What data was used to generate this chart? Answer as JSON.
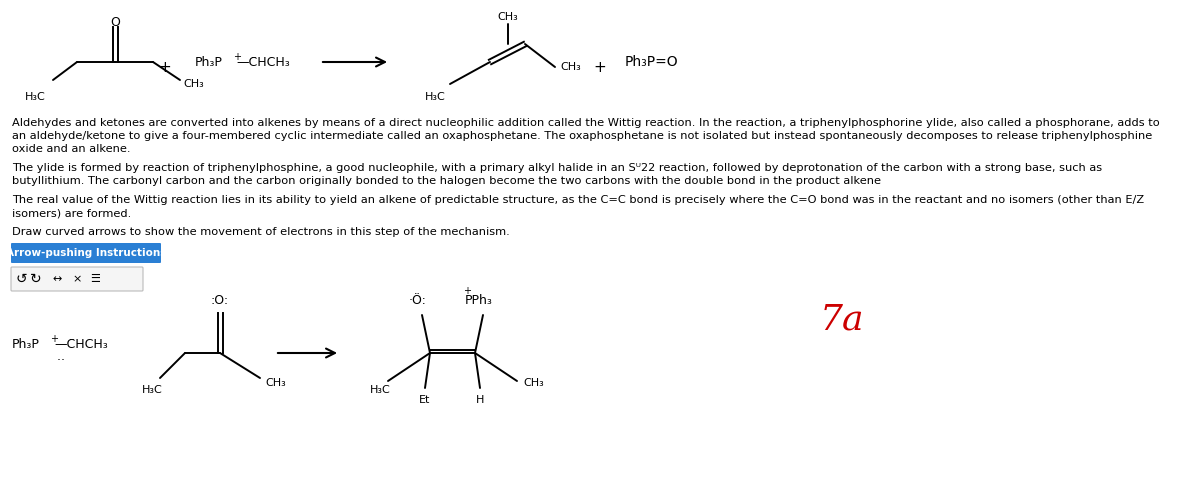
{
  "bg_color": "#ffffff",
  "paragraph1": "Aldehydes and ketones are converted into alkenes by means of a direct nucleophilic addition called the Wittig reaction. In the reaction, a triphenylphosphorine ylide, also called a phosphorane, adds to an aldehyde/ketone to give a four-membered cyclic intermediate called an oxaphosphetane. The oxaphosphetane is not isolated but instead spontaneously decomposes to release triphenylphosphine oxide and an alkene.",
  "paragraph2": "The ylide is formed by reaction of triphenylphosphine, a good nucleophile, with a primary alkyl halide in an Sᵁ22 reaction, followed by deprotonation of the carbon with a strong base, such as butyllithium. The carbonyl carbon and the carbon originally bonded to the halogen become the two carbons with the double bond in the product alkene",
  "paragraph3": "The real value of the Wittig reaction lies in its ability to yield an alkene of predictable structure, as the C=C bond is precisely where the C=O bond was in the reactant and no isomers (other than E/Z isomers) are formed.",
  "draw_instruction": "Draw curved arrows to show the movement of electrons in this step of the mechanism.",
  "button_text": "Arrow-pushing Instructions",
  "button_color": "#2a7fd4",
  "annotation": "7a",
  "annotation_color": "#cc0000"
}
